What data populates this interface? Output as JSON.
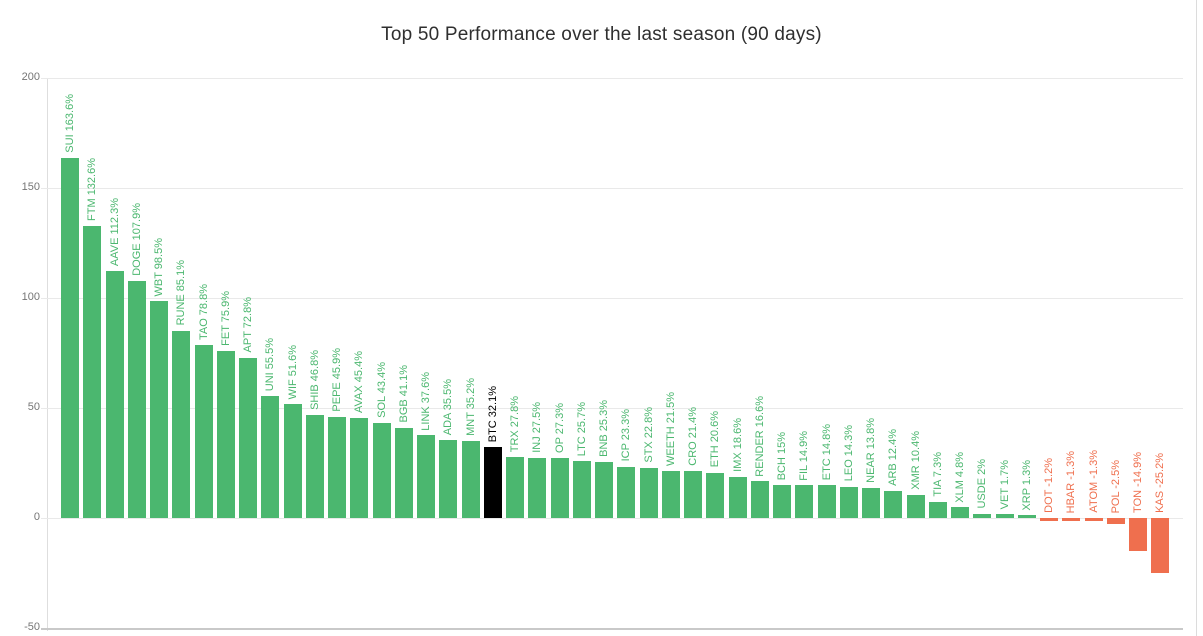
{
  "header": {
    "title": "Top 50 Performance over the last season (90 days)"
  },
  "chart_data": {
    "type": "bar",
    "title": "Top 50 Performance over the last season (90 days)",
    "xlabel": "",
    "ylabel": "",
    "unit": "%",
    "ylim": [
      -50,
      200
    ],
    "yticks": [
      200,
      150,
      100,
      50,
      0,
      -50
    ],
    "grid": true,
    "legend": "none",
    "colors": {
      "positive": "#4BB76F",
      "negative": "#EF6F4E",
      "highlight": "#000000",
      "grid": "#E9E9E9",
      "axis_text": "#757575"
    },
    "bars": [
      {
        "symbol": "SUI",
        "value": 163.6,
        "label": "SUI 163.6%",
        "color": "positive"
      },
      {
        "symbol": "FTM",
        "value": 132.6,
        "label": "FTM 132.6%",
        "color": "positive"
      },
      {
        "symbol": "AAVE",
        "value": 112.3,
        "label": "AAVE 112.3%",
        "color": "positive"
      },
      {
        "symbol": "DOGE",
        "value": 107.9,
        "label": "DOGE 107.9%",
        "color": "positive"
      },
      {
        "symbol": "WBT",
        "value": 98.5,
        "label": "WBT 98.5%",
        "color": "positive"
      },
      {
        "symbol": "RUNE",
        "value": 85.1,
        "label": "RUNE 85.1%",
        "color": "positive"
      },
      {
        "symbol": "TAO",
        "value": 78.8,
        "label": "TAO 78.8%",
        "color": "positive"
      },
      {
        "symbol": "FET",
        "value": 75.9,
        "label": "FET 75.9%",
        "color": "positive"
      },
      {
        "symbol": "APT",
        "value": 72.8,
        "label": "APT 72.8%",
        "color": "positive"
      },
      {
        "symbol": "UNI",
        "value": 55.5,
        "label": "UNI 55.5%",
        "color": "positive"
      },
      {
        "symbol": "WIF",
        "value": 51.6,
        "label": "WIF 51.6%",
        "color": "positive"
      },
      {
        "symbol": "SHIB",
        "value": 46.8,
        "label": "SHIB 46.8%",
        "color": "positive"
      },
      {
        "symbol": "PEPE",
        "value": 45.9,
        "label": "PEPE 45.9%",
        "color": "positive"
      },
      {
        "symbol": "AVAX",
        "value": 45.4,
        "label": "AVAX 45.4%",
        "color": "positive"
      },
      {
        "symbol": "SOL",
        "value": 43.4,
        "label": "SOL 43.4%",
        "color": "positive"
      },
      {
        "symbol": "BGB",
        "value": 41.1,
        "label": "BGB 41.1%",
        "color": "positive"
      },
      {
        "symbol": "LINK",
        "value": 37.6,
        "label": "LINK 37.6%",
        "color": "positive"
      },
      {
        "symbol": "ADA",
        "value": 35.5,
        "label": "ADA 35.5%",
        "color": "positive"
      },
      {
        "symbol": "MNT",
        "value": 35.2,
        "label": "MNT 35.2%",
        "color": "positive"
      },
      {
        "symbol": "BTC",
        "value": 32.1,
        "label": "BTC 32.1%",
        "color": "highlight"
      },
      {
        "symbol": "TRX",
        "value": 27.8,
        "label": "TRX 27.8%",
        "color": "positive"
      },
      {
        "symbol": "INJ",
        "value": 27.5,
        "label": "INJ 27.5%",
        "color": "positive"
      },
      {
        "symbol": "OP",
        "value": 27.3,
        "label": "OP 27.3%",
        "color": "positive"
      },
      {
        "symbol": "LTC",
        "value": 25.7,
        "label": "LTC 25.7%",
        "color": "positive"
      },
      {
        "symbol": "BNB",
        "value": 25.3,
        "label": "BNB 25.3%",
        "color": "positive"
      },
      {
        "symbol": "ICP",
        "value": 23.3,
        "label": "ICP 23.3%",
        "color": "positive"
      },
      {
        "symbol": "STX",
        "value": 22.8,
        "label": "STX 22.8%",
        "color": "positive"
      },
      {
        "symbol": "WEETH",
        "value": 21.5,
        "label": "WEETH 21.5%",
        "color": "positive"
      },
      {
        "symbol": "CRO",
        "value": 21.4,
        "label": "CRO 21.4%",
        "color": "positive"
      },
      {
        "symbol": "ETH",
        "value": 20.6,
        "label": "ETH 20.6%",
        "color": "positive"
      },
      {
        "symbol": "IMX",
        "value": 18.6,
        "label": "IMX 18.6%",
        "color": "positive"
      },
      {
        "symbol": "RENDER",
        "value": 16.6,
        "label": "RENDER 16.6%",
        "color": "positive"
      },
      {
        "symbol": "BCH",
        "value": 15,
        "label": "BCH 15%",
        "color": "positive"
      },
      {
        "symbol": "FIL",
        "value": 14.9,
        "label": "FIL 14.9%",
        "color": "positive"
      },
      {
        "symbol": "ETC",
        "value": 14.8,
        "label": "ETC 14.8%",
        "color": "positive"
      },
      {
        "symbol": "LEO",
        "value": 14.3,
        "label": "LEO 14.3%",
        "color": "positive"
      },
      {
        "symbol": "NEAR",
        "value": 13.8,
        "label": "NEAR 13.8%",
        "color": "positive"
      },
      {
        "symbol": "ARB",
        "value": 12.4,
        "label": "ARB 12.4%",
        "color": "positive"
      },
      {
        "symbol": "XMR",
        "value": 10.4,
        "label": "XMR 10.4%",
        "color": "positive"
      },
      {
        "symbol": "TIA",
        "value": 7.3,
        "label": "TIA 7.3%",
        "color": "positive"
      },
      {
        "symbol": "XLM",
        "value": 4.8,
        "label": "XLM 4.8%",
        "color": "positive"
      },
      {
        "symbol": "USDE",
        "value": 2,
        "label": "USDE 2%",
        "color": "positive"
      },
      {
        "symbol": "VET",
        "value": 1.7,
        "label": "VET 1.7%",
        "color": "positive"
      },
      {
        "symbol": "XRP",
        "value": 1.3,
        "label": "XRP 1.3%",
        "color": "positive"
      },
      {
        "symbol": "DOT",
        "value": -1.2,
        "label": "DOT -1.2%",
        "color": "negative"
      },
      {
        "symbol": "HBAR",
        "value": -1.3,
        "label": "HBAR -1.3%",
        "color": "negative"
      },
      {
        "symbol": "ATOM",
        "value": -1.3,
        "label": "ATOM -1.3%",
        "color": "negative"
      },
      {
        "symbol": "POL",
        "value": -2.5,
        "label": "POL -2.5%",
        "color": "negative"
      },
      {
        "symbol": "TON",
        "value": -14.9,
        "label": "TON -14.9%",
        "color": "negative"
      },
      {
        "symbol": "KAS",
        "value": -25.2,
        "label": "KAS -25.2%",
        "color": "negative"
      }
    ]
  }
}
